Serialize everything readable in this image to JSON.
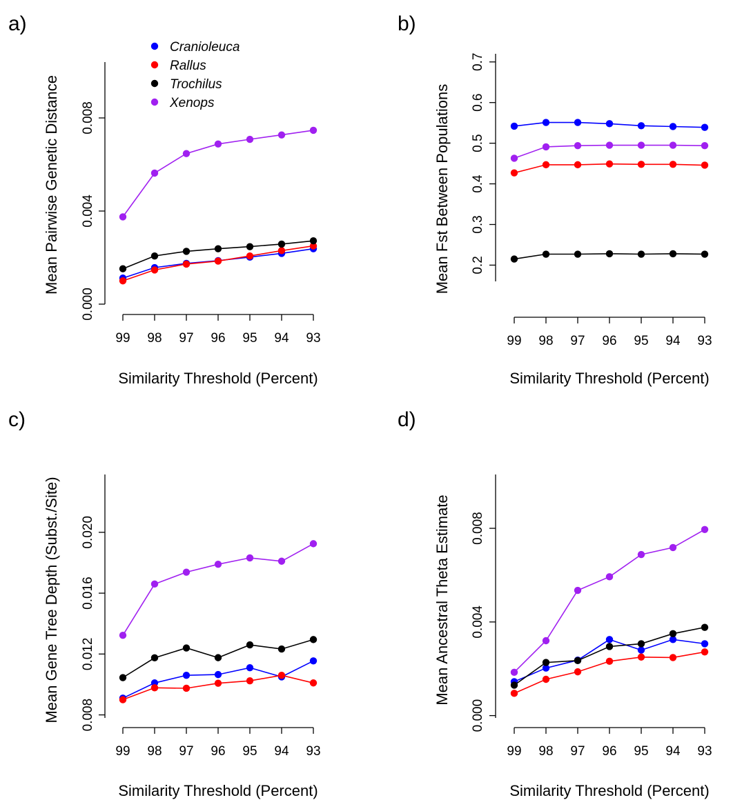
{
  "colors": {
    "Cranioleuca": "#0000ff",
    "Rallus": "#ff0000",
    "Trochilus": "#000000",
    "Xenops": "#a020f0"
  },
  "legend": {
    "placement": "top (panel a)",
    "entries": [
      "Cranioleuca",
      "Rallus",
      "Trochilus",
      "Xenops"
    ]
  },
  "chart_data": [
    {
      "panel": "a)",
      "type": "line",
      "xlabel": "Similarity Threshold (Percent)",
      "ylabel": "Mean Pairwise Genetic Distance",
      "categories": [
        "99",
        "98",
        "97",
        "96",
        "95",
        "94",
        "93"
      ],
      "ylim": [
        0.0,
        0.0104
      ],
      "yticks": [
        0.0,
        0.004,
        0.008
      ],
      "ytick_labels": [
        "0.000",
        "0.004",
        "0.008"
      ],
      "grid": false,
      "series": [
        {
          "name": "Cranioleuca",
          "values": [
            0.00112,
            0.00157,
            0.00175,
            0.00187,
            0.00202,
            0.00218,
            0.00238
          ]
        },
        {
          "name": "Rallus",
          "values": [
            0.001,
            0.00147,
            0.00172,
            0.00185,
            0.00207,
            0.0023,
            0.0025
          ]
        },
        {
          "name": "Trochilus",
          "values": [
            0.00152,
            0.00207,
            0.00227,
            0.00238,
            0.00247,
            0.00258,
            0.00272
          ]
        },
        {
          "name": "Xenops",
          "values": [
            0.00375,
            0.00563,
            0.00647,
            0.00688,
            0.00708,
            0.00727,
            0.00747
          ]
        }
      ]
    },
    {
      "panel": "b)",
      "type": "line",
      "xlabel": "Similarity Threshold (Percent)",
      "ylabel": "Mean Fst Between Populations",
      "categories": [
        "99",
        "98",
        "97",
        "96",
        "95",
        "94",
        "93"
      ],
      "ylim": [
        0.16,
        0.72
      ],
      "yticks": [
        0.2,
        0.3,
        0.4,
        0.5,
        0.6,
        0.7
      ],
      "ytick_labels": [
        "0.2",
        "0.3",
        "0.4",
        "0.5",
        "0.6",
        "0.7"
      ],
      "grid": false,
      "series": [
        {
          "name": "Cranioleuca",
          "values": [
            0.542,
            0.551,
            0.551,
            0.548,
            0.543,
            0.541,
            0.539
          ]
        },
        {
          "name": "Rallus",
          "values": [
            0.427,
            0.447,
            0.447,
            0.449,
            0.448,
            0.448,
            0.446
          ]
        },
        {
          "name": "Trochilus",
          "values": [
            0.215,
            0.227,
            0.227,
            0.228,
            0.227,
            0.228,
            0.227
          ]
        },
        {
          "name": "Xenops",
          "values": [
            0.463,
            0.491,
            0.494,
            0.495,
            0.495,
            0.495,
            0.494
          ]
        }
      ]
    },
    {
      "panel": "c)",
      "type": "line",
      "xlabel": "Similarity Threshold (Percent)",
      "ylabel": "Mean Gene Tree Depth (Subst./Site)",
      "categories": [
        "99",
        "98",
        "97",
        "96",
        "95",
        "94",
        "93"
      ],
      "ylim": [
        0.0078,
        0.0238
      ],
      "yticks": [
        0.008,
        0.012,
        0.016,
        0.02
      ],
      "ytick_labels": [
        "0.008",
        "0.012",
        "0.016",
        "0.020"
      ],
      "grid": false,
      "series": [
        {
          "name": "Cranioleuca",
          "values": [
            0.0091,
            0.0101,
            0.0106,
            0.01065,
            0.0111,
            0.0105,
            0.01155
          ]
        },
        {
          "name": "Rallus",
          "values": [
            0.009,
            0.00978,
            0.00975,
            0.01008,
            0.01024,
            0.0106,
            0.0101
          ]
        },
        {
          "name": "Trochilus",
          "values": [
            0.01045,
            0.01175,
            0.0124,
            0.01176,
            0.0126,
            0.01233,
            0.01295
          ]
        },
        {
          "name": "Xenops",
          "values": [
            0.01323,
            0.0166,
            0.01738,
            0.0179,
            0.01832,
            0.0181,
            0.01925
          ]
        }
      ]
    },
    {
      "panel": "d)",
      "type": "line",
      "xlabel": "Similarity Threshold (Percent)",
      "ylabel": "Mean Ancestral Theta Estimate",
      "categories": [
        "99",
        "98",
        "97",
        "96",
        "95",
        "94",
        "93"
      ],
      "ylim": [
        -0.0001,
        0.0103
      ],
      "yticks": [
        0.0,
        0.004,
        0.008
      ],
      "ytick_labels": [
        "0.000",
        "0.004",
        "0.008"
      ],
      "grid": false,
      "series": [
        {
          "name": "Cranioleuca",
          "values": [
            0.00145,
            0.00203,
            0.00237,
            0.00325,
            0.0028,
            0.00325,
            0.00307
          ]
        },
        {
          "name": "Rallus",
          "values": [
            0.00095,
            0.00155,
            0.00187,
            0.00232,
            0.0025,
            0.00248,
            0.00272
          ]
        },
        {
          "name": "Trochilus",
          "values": [
            0.0013,
            0.00227,
            0.00235,
            0.00295,
            0.00307,
            0.0035,
            0.00377
          ]
        },
        {
          "name": "Xenops",
          "values": [
            0.00185,
            0.0032,
            0.00535,
            0.00593,
            0.00688,
            0.00718,
            0.00795
          ]
        }
      ]
    }
  ]
}
